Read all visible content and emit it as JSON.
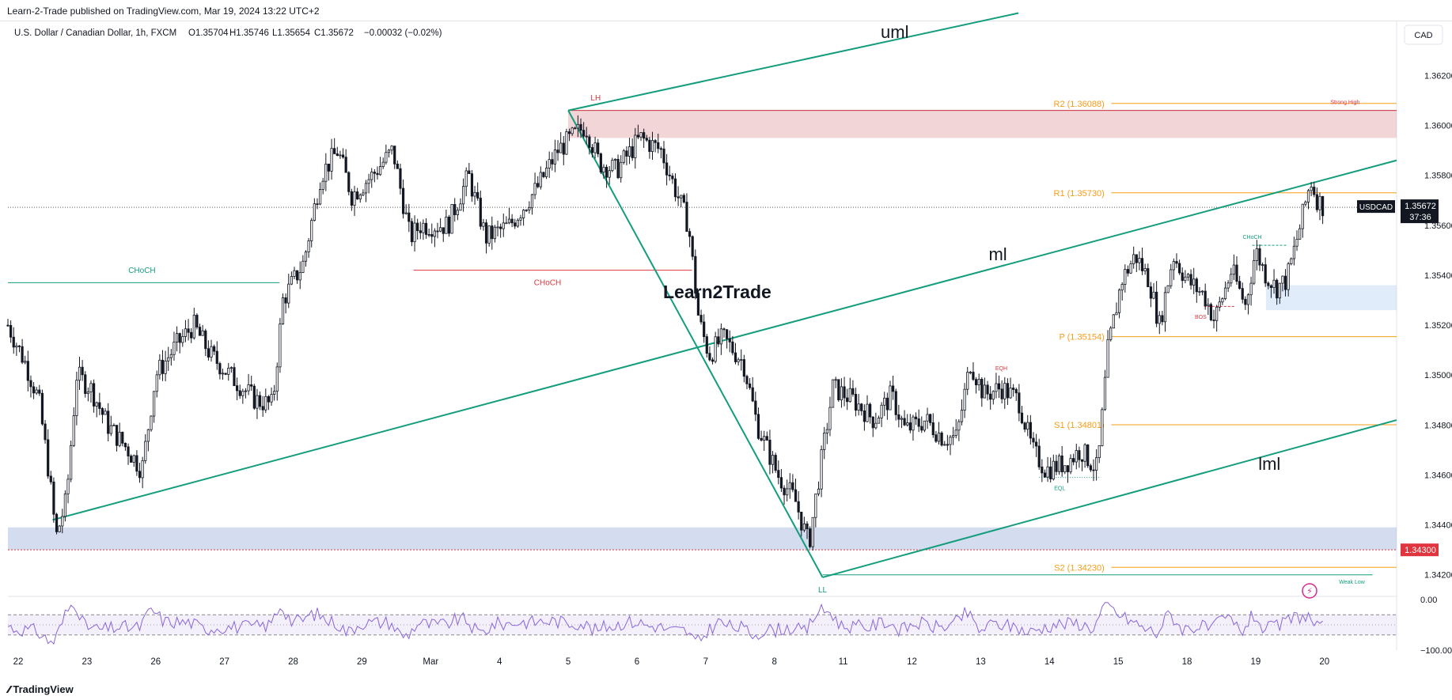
{
  "publisher_line": "Learn-2-Trade published on TradingView.com, Mar 19, 2024 13:22 UTC+2",
  "symbol_info": {
    "name": "U.S. Dollar / Canadian Dollar, 1h, FXCM",
    "O": "O1.35704",
    "H": "H1.35746",
    "L": "L1.35654",
    "C": "C1.35672",
    "change": "−0.00032 (−0.02%)"
  },
  "currency_button": "CAD",
  "tradingview_logo": "TradingView",
  "watermark": "Learn2Trade",
  "colors": {
    "channel": "#139d7d",
    "bull_candle": "#ffffff",
    "bear_candle": "#131722",
    "pivot": "#f59d17",
    "supply": "#d9868a",
    "demand_blue": "#9fb2db",
    "rsi": "#8966d6",
    "chosh_red": "#e0343f",
    "label_red": "#e0343f"
  },
  "chart_data": {
    "type": "candlestick",
    "instrument": "USDCAD",
    "timeframe": "1h",
    "price_axis": {
      "ylim": [
        1.3412,
        1.3642
      ],
      "ticks": [
        "1.36200",
        "1.36000",
        "1.35800",
        "1.35600",
        "1.35400",
        "1.35200",
        "1.35000",
        "1.34800",
        "1.34600",
        "1.34400",
        "1.34200"
      ]
    },
    "time_axis": {
      "xlim": [
        0,
        20.2
      ],
      "labels": [
        {
          "t": 0.15,
          "label": "22"
        },
        {
          "t": 1.15,
          "label": "23"
        },
        {
          "t": 2.15,
          "label": "26"
        },
        {
          "t": 3.15,
          "label": "27"
        },
        {
          "t": 4.15,
          "label": "28"
        },
        {
          "t": 5.15,
          "label": "29"
        },
        {
          "t": 6.15,
          "label": "Mar"
        },
        {
          "t": 7.15,
          "label": "4"
        },
        {
          "t": 8.15,
          "label": "5"
        },
        {
          "t": 9.15,
          "label": "6"
        },
        {
          "t": 10.15,
          "label": "7"
        },
        {
          "t": 11.15,
          "label": "8"
        },
        {
          "t": 12.15,
          "label": "11"
        },
        {
          "t": 13.15,
          "label": "12"
        },
        {
          "t": 14.15,
          "label": "13"
        },
        {
          "t": 15.15,
          "label": "14"
        },
        {
          "t": 16.15,
          "label": "15"
        },
        {
          "t": 17.15,
          "label": "18"
        },
        {
          "t": 18.15,
          "label": "19"
        },
        {
          "t": 19.15,
          "label": "20"
        }
      ]
    },
    "price_path": [
      [
        0.0,
        1.352
      ],
      [
        0.25,
        1.3505
      ],
      [
        0.45,
        1.349
      ],
      [
        0.6,
        1.346
      ],
      [
        0.7,
        1.3435
      ],
      [
        0.85,
        1.345
      ],
      [
        1.0,
        1.35
      ],
      [
        1.2,
        1.3495
      ],
      [
        1.45,
        1.348
      ],
      [
        1.75,
        1.347
      ],
      [
        1.95,
        1.3462
      ],
      [
        2.15,
        1.35
      ],
      [
        2.45,
        1.3512
      ],
      [
        2.7,
        1.352
      ],
      [
        2.95,
        1.3508
      ],
      [
        3.3,
        1.3498
      ],
      [
        3.6,
        1.349
      ],
      [
        3.85,
        1.3488
      ],
      [
        4.0,
        1.353
      ],
      [
        4.3,
        1.3545
      ],
      [
        4.55,
        1.358
      ],
      [
        4.8,
        1.359
      ],
      [
        5.0,
        1.3572
      ],
      [
        5.3,
        1.358
      ],
      [
        5.6,
        1.359
      ],
      [
        5.85,
        1.3555
      ],
      [
        6.0,
        1.356
      ],
      [
        6.4,
        1.356
      ],
      [
        6.7,
        1.358
      ],
      [
        6.95,
        1.3555
      ],
      [
        7.3,
        1.356
      ],
      [
        7.7,
        1.3575
      ],
      [
        8.0,
        1.359
      ],
      [
        8.4,
        1.36
      ],
      [
        8.6,
        1.3585
      ],
      [
        8.85,
        1.3582
      ],
      [
        9.2,
        1.3595
      ],
      [
        9.5,
        1.359
      ],
      [
        9.7,
        1.3575
      ],
      [
        9.9,
        1.356
      ],
      [
        10.05,
        1.3522
      ],
      [
        10.2,
        1.3508
      ],
      [
        10.4,
        1.3515
      ],
      [
        10.7,
        1.3505
      ],
      [
        10.9,
        1.348
      ],
      [
        11.2,
        1.346
      ],
      [
        11.45,
        1.345
      ],
      [
        11.65,
        1.3432
      ],
      [
        11.8,
        1.346
      ],
      [
        12.0,
        1.3495
      ],
      [
        12.3,
        1.349
      ],
      [
        12.6,
        1.3482
      ],
      [
        12.85,
        1.3492
      ],
      [
        13.05,
        1.3478
      ],
      [
        13.35,
        1.3482
      ],
      [
        13.6,
        1.3475
      ],
      [
        13.8,
        1.3475
      ],
      [
        14.0,
        1.3505
      ],
      [
        14.2,
        1.3492
      ],
      [
        14.45,
        1.3495
      ],
      [
        14.7,
        1.349
      ],
      [
        14.9,
        1.347
      ],
      [
        15.1,
        1.3462
      ],
      [
        15.4,
        1.3465
      ],
      [
        15.6,
        1.347
      ],
      [
        15.85,
        1.3462
      ],
      [
        16.0,
        1.351
      ],
      [
        16.2,
        1.3538
      ],
      [
        16.4,
        1.3548
      ],
      [
        16.6,
        1.3538
      ],
      [
        16.75,
        1.352
      ],
      [
        16.95,
        1.3548
      ],
      [
        17.15,
        1.3538
      ],
      [
        17.4,
        1.3532
      ],
      [
        17.55,
        1.3522
      ],
      [
        17.8,
        1.3542
      ],
      [
        18.0,
        1.3528
      ],
      [
        18.15,
        1.355
      ],
      [
        18.3,
        1.354
      ],
      [
        18.45,
        1.3535
      ],
      [
        18.6,
        1.3538
      ],
      [
        18.8,
        1.356
      ],
      [
        18.95,
        1.3578
      ],
      [
        19.05,
        1.357
      ],
      [
        19.15,
        1.3567
      ]
    ],
    "last_price": "1.35672",
    "last_price_label": "USDCAD",
    "countdown": "37:36",
    "marked_level": "1.34300",
    "pivot_levels": [
      {
        "label": "R2 (1.36088)",
        "value": 1.36088
      },
      {
        "label": "R1 (1.35730)",
        "value": 1.3573
      },
      {
        "label": "P (1.35154)",
        "value": 1.35154
      },
      {
        "label": "S1 (1.34801)",
        "value": 1.34801
      },
      {
        "label": "S2 (1.34230)",
        "value": 1.3423
      }
    ],
    "channel_lines": [
      {
        "name": "uml",
        "from": [
          8.15,
          1.3606
        ],
        "to": [
          14.7,
          1.3645
        ]
      },
      {
        "name": "ml",
        "from": [
          0.65,
          1.3442
        ],
        "to": [
          20.2,
          1.3586
        ]
      },
      {
        "name": "lml",
        "from": [
          11.85,
          1.3419
        ],
        "to": [
          20.2,
          1.3482
        ]
      }
    ],
    "swing_legs": [
      {
        "from": [
          8.15,
          1.3606
        ],
        "to": [
          11.85,
          1.3419
        ]
      }
    ],
    "zones": [
      {
        "name": "supply",
        "x": [
          8.15,
          20.2
        ],
        "y": [
          1.3595,
          1.3606
        ]
      },
      {
        "name": "demand",
        "x": [
          0.0,
          20.2
        ],
        "y": [
          1.343,
          1.3439
        ]
      },
      {
        "name": "order-block",
        "x": [
          18.3,
          20.2
        ],
        "y": [
          1.3526,
          1.3536
        ]
      }
    ],
    "structure_lines": [
      {
        "label": "CHoCH",
        "x": [
          0.0,
          3.95
        ],
        "y": 1.3537,
        "color": "green"
      },
      {
        "label": "CHoCH",
        "x": [
          5.9,
          9.95
        ],
        "y": 1.3542,
        "color": "red"
      },
      {
        "label": "",
        "x": [
          11.85,
          19.85
        ],
        "y": 1.342,
        "color": "green"
      },
      {
        "label": "",
        "x": [
          15.0,
          15.9
        ],
        "y": 1.3459,
        "color": "green-dotted"
      },
      {
        "label": "",
        "x": [
          17.4,
          17.85
        ],
        "y": 1.35275,
        "color": "red-dashed"
      },
      {
        "label": "",
        "x": [
          18.1,
          18.6
        ],
        "y": 1.3552,
        "color": "green-dashed"
      }
    ],
    "annotations": [
      {
        "text": "uml",
        "t": 12.9,
        "p": 1.3635,
        "size": "large"
      },
      {
        "text": "ml",
        "t": 14.4,
        "p": 1.3546,
        "size": "large"
      },
      {
        "text": "lml",
        "t": 18.35,
        "p": 1.3462,
        "size": "large"
      },
      {
        "text": "LH",
        "t": 8.55,
        "p": 1.361,
        "size": "small",
        "color": "red"
      },
      {
        "text": "LL",
        "t": 11.85,
        "p": 1.3413,
        "size": "small",
        "color": "green"
      },
      {
        "text": "CHoCH",
        "t": 1.95,
        "p": 1.3541,
        "size": "small",
        "color": "green"
      },
      {
        "text": "CHoCH",
        "t": 7.85,
        "p": 1.3536,
        "size": "small",
        "color": "red"
      },
      {
        "text": "EQH",
        "t": 14.45,
        "p": 1.3502,
        "size": "tiny",
        "color": "red"
      },
      {
        "text": "EQL",
        "t": 15.3,
        "p": 1.3454,
        "size": "tiny",
        "color": "green"
      },
      {
        "text": "BOS",
        "t": 17.35,
        "p": 1.35225,
        "size": "tiny",
        "color": "red"
      },
      {
        "text": "CHoCH",
        "t": 18.1,
        "p": 1.35545,
        "size": "tiny",
        "color": "green"
      },
      {
        "text": "Strong High",
        "t": 19.45,
        "p": 1.36085,
        "size": "tiny",
        "color": "red"
      },
      {
        "text": "Weak Low",
        "t": 19.55,
        "p": 1.34165,
        "size": "tiny",
        "color": "green"
      }
    ],
    "rsi": {
      "ticks": [
        "0.00",
        "−100.00"
      ],
      "band": [
        -30,
        -70
      ]
    }
  }
}
